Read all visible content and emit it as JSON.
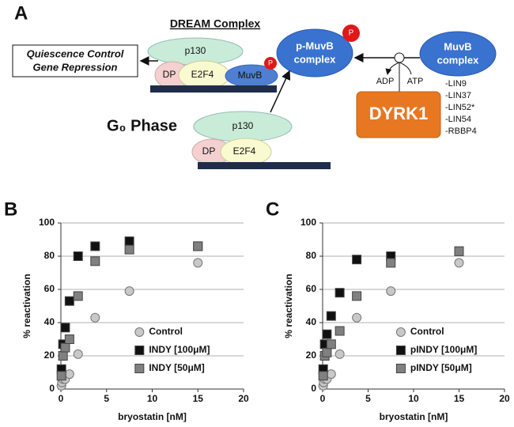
{
  "diagram": {
    "label": "A",
    "title": "DREAM Complex",
    "target": [
      "Quiescence Control",
      "Gene Repression"
    ],
    "dream": {
      "p130": "p130",
      "dp": "DP",
      "e2f4": "E2F4",
      "muvb": "MuvB",
      "p": "P"
    },
    "pmuvb": [
      "p-MuvB",
      "complex"
    ],
    "pmuvb_p": "P",
    "muvb": [
      "MuvB",
      "complex"
    ],
    "adp": "ADP",
    "atp": "ATP",
    "kinase": "DYRK1",
    "components": [
      "-LIN9",
      "-LIN37",
      "-LIN52*",
      "-LIN54",
      "-RBBP4"
    ],
    "phase": "G₀ Phase",
    "g0": {
      "p130": "p130",
      "dp": "DP",
      "e2f4": "E2F4"
    }
  },
  "chart_data": [
    {
      "type": "scatter",
      "label": "B",
      "xlabel": "bryostatin [nM]",
      "ylabel": "% reactivation",
      "xlim": [
        0,
        20
      ],
      "xticks": [
        0,
        5,
        10,
        15,
        20
      ],
      "ylim": [
        0,
        100
      ],
      "yticks": [
        0,
        20,
        40,
        60,
        80,
        100
      ],
      "grid": true,
      "legend": "lower right",
      "series": [
        {
          "name": "Control",
          "color": "#c8c8c8",
          "marker": "circle",
          "x": [
            0.06,
            0.12,
            0.23,
            0.47,
            0.94,
            1.88,
            3.75,
            7.5,
            15
          ],
          "values": [
            2,
            4,
            6,
            6,
            9,
            21,
            43,
            59,
            76
          ]
        },
        {
          "name": "INDY [100μM]",
          "color": "#111111",
          "marker": "square",
          "x": [
            0.06,
            0.23,
            0.47,
            0.94,
            1.88,
            3.75,
            7.5,
            15
          ],
          "values": [
            12,
            27,
            37,
            53,
            80,
            86,
            89,
            86
          ]
        },
        {
          "name": "INDY [50μM]",
          "color": "#808080",
          "marker": "square",
          "x": [
            0.06,
            0.23,
            0.47,
            0.94,
            1.88,
            3.75,
            7.5,
            15
          ],
          "values": [
            8,
            20,
            25,
            30,
            56,
            77,
            84,
            86
          ]
        }
      ]
    },
    {
      "type": "scatter",
      "label": "C",
      "xlabel": "bryostatin [nM]",
      "ylabel": "% reactivation",
      "xlim": [
        0,
        20
      ],
      "xticks": [
        0,
        5,
        10,
        15,
        20
      ],
      "ylim": [
        0,
        100
      ],
      "yticks": [
        0,
        20,
        40,
        60,
        80,
        100
      ],
      "grid": true,
      "legend": "lower right",
      "series": [
        {
          "name": "Control",
          "color": "#c8c8c8",
          "marker": "circle",
          "x": [
            0.06,
            0.12,
            0.23,
            0.47,
            0.94,
            1.88,
            3.75,
            7.5,
            15
          ],
          "values": [
            2,
            4,
            6,
            6,
            9,
            21,
            43,
            59,
            76
          ]
        },
        {
          "name": "pINDY [100μM]",
          "color": "#111111",
          "marker": "square",
          "x": [
            0.06,
            0.23,
            0.47,
            0.94,
            1.88,
            3.75,
            7.5,
            15
          ],
          "values": [
            12,
            27,
            33,
            44,
            58,
            78,
            80,
            83
          ]
        },
        {
          "name": "pINDY [50μM]",
          "color": "#808080",
          "marker": "square",
          "x": [
            0.06,
            0.23,
            0.47,
            0.94,
            1.88,
            3.75,
            7.5,
            15
          ],
          "values": [
            8,
            20,
            22,
            27,
            35,
            56,
            76,
            83
          ]
        }
      ]
    }
  ]
}
